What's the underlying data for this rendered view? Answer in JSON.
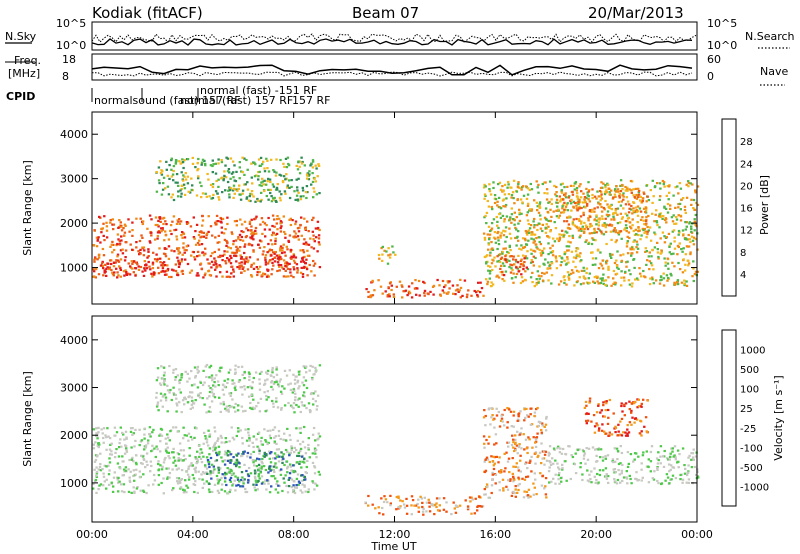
{
  "header": {
    "station": "Kodiak (fitACF)",
    "beam": "Beam 07",
    "date": "20/Mar/2013"
  },
  "top_panels": {
    "nsky_label": "N.Sky",
    "nsearch_label": "N.Search",
    "freq_label_line1": "Freq.",
    "freq_label_line2": "[MHz]",
    "nave_label": "Nave",
    "cpid_label": "CPID",
    "left_ticks_count": [
      "10^5",
      "10^0"
    ],
    "right_ticks_count": [
      "10^5",
      "10^0"
    ],
    "left_ticks_freq": [
      "18",
      "8"
    ],
    "right_ticks_freq": [
      "60",
      "0"
    ],
    "cpid_texts": [
      "normal (fast) -151 RF",
      "normalsound (fast) 157 RF",
      "normal (fast) 157 RF",
      "157 RF"
    ]
  },
  "colors": {
    "power_scale": [
      "#1a2cff",
      "#2d56b8",
      "#2e8a56",
      "#4fb648",
      "#f2b81e",
      "#f08a14",
      "#ec5a16",
      "#e41a1a"
    ],
    "velocity_scale": [
      "#e41a1a",
      "#f0500e",
      "#f39a1a",
      "#c8c8c2",
      "#c8c8c2",
      "#4fc94a",
      "#2e8a56",
      "#2d56b8",
      "#1a2cff"
    ]
  },
  "chart_data": [
    {
      "type": "heatmap",
      "name": "power",
      "ylabel": "Slant Range [km]",
      "xlabel": "",
      "x_ticks": [
        "00:00",
        "04:00",
        "08:00",
        "12:00",
        "16:00",
        "20:00",
        "00:00"
      ],
      "y_ticks": [
        "1000",
        "2000",
        "3000",
        "4000"
      ],
      "xlim_hours": [
        0,
        24
      ],
      "ylim_km": [
        180,
        4500
      ],
      "colorbar_label": "Power [dB]",
      "colorbar_ticks": [
        "4",
        "8",
        "12",
        "16",
        "20",
        "24",
        "28"
      ],
      "regions": [
        {
          "t0": 0.0,
          "t1": 9.0,
          "r0": 800,
          "r1": 2200,
          "level": 6
        },
        {
          "t0": 0.2,
          "t1": 3.6,
          "r0": 850,
          "r1": 1150,
          "level": 7
        },
        {
          "t0": 4.5,
          "t1": 8.5,
          "r0": 950,
          "r1": 1300,
          "level": 7
        },
        {
          "t0": 2.5,
          "t1": 9.0,
          "r0": 2500,
          "r1": 3500,
          "level": 3
        },
        {
          "t0": 11.3,
          "t1": 12.0,
          "r0": 1100,
          "r1": 1500,
          "level": 4
        },
        {
          "t0": 10.8,
          "t1": 15.5,
          "r0": 350,
          "r1": 750,
          "level": 6
        },
        {
          "t0": 15.5,
          "t1": 24.0,
          "r0": 600,
          "r1": 3000,
          "level": 4
        },
        {
          "t0": 16.0,
          "t1": 17.5,
          "r0": 850,
          "r1": 1300,
          "level": 6
        },
        {
          "t0": 18.5,
          "t1": 22.0,
          "r0": 1800,
          "r1": 2800,
          "level": 5
        }
      ]
    },
    {
      "type": "heatmap",
      "name": "velocity",
      "ylabel": "Slant Range [km]",
      "xlabel": "Time UT",
      "x_ticks": [
        "00:00",
        "04:00",
        "08:00",
        "12:00",
        "16:00",
        "20:00",
        "00:00"
      ],
      "y_ticks": [
        "1000",
        "2000",
        "3000",
        "4000"
      ],
      "xlim_hours": [
        0,
        24
      ],
      "ylim_km": [
        180,
        4500
      ],
      "colorbar_label": "Velocity [m s⁻¹]",
      "colorbar_ticks": [
        "-1000",
        "-500",
        "-100",
        "-25",
        "25",
        "100",
        "500",
        "1000"
      ],
      "regions": [
        {
          "t0": 0.0,
          "t1": 9.0,
          "r0": 800,
          "r1": 2200,
          "level": 4
        },
        {
          "t0": 4.5,
          "t1": 8.5,
          "r0": 950,
          "r1": 1700,
          "level": 6
        },
        {
          "t0": 2.5,
          "t1": 9.0,
          "r0": 2500,
          "r1": 3500,
          "level": 4
        },
        {
          "t0": 10.8,
          "t1": 15.5,
          "r0": 350,
          "r1": 750,
          "level": 2
        },
        {
          "t0": 15.5,
          "t1": 18.0,
          "r0": 700,
          "r1": 2600,
          "level": 2
        },
        {
          "t0": 18.0,
          "t1": 24.0,
          "r0": 1000,
          "r1": 1800,
          "level": 4
        },
        {
          "t0": 19.5,
          "t1": 22.0,
          "r0": 2000,
          "r1": 2800,
          "level": 1
        }
      ]
    }
  ],
  "axis_labels": {
    "time_ut": "Time UT",
    "slant_range_top": "Slant Range [km]",
    "slant_range_bottom": "Slant Range [km]",
    "power": "Power [dB]",
    "velocity": "Velocity [m s⁻¹]"
  }
}
